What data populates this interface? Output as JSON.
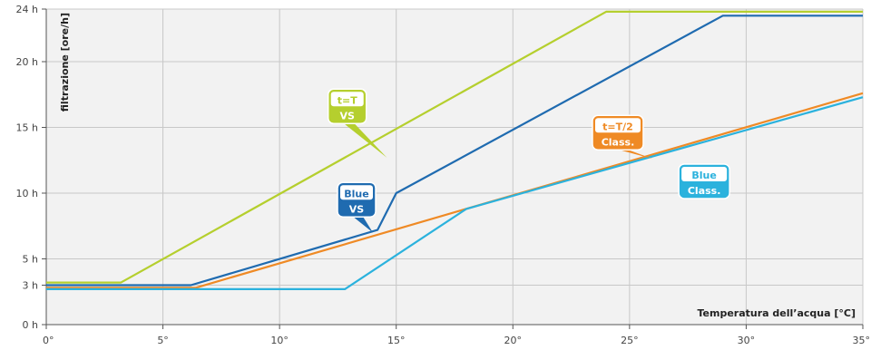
{
  "chart_data": {
    "type": "line",
    "title": "",
    "ylabel": "filtrazione [ore/h]",
    "xlabel": "Temperatura dell’acqua [°C]",
    "xlim": [
      0,
      35
    ],
    "ylim": [
      0,
      24
    ],
    "x_ticks": [
      0,
      5,
      10,
      15,
      20,
      25,
      30,
      35
    ],
    "x_tick_labels": [
      "0°",
      "5°",
      "10°",
      "15°",
      "20°",
      "25°",
      "30°",
      "35°"
    ],
    "y_ticks": [
      0,
      3,
      5,
      10,
      15,
      20,
      24
    ],
    "y_tick_labels": [
      "0 h",
      "3 h",
      "5 h",
      "10 h",
      "15 h",
      "20 h",
      "24 h"
    ],
    "grid": true,
    "series": [
      {
        "name": "t=T VS",
        "color": "#b5cf2e",
        "points": [
          [
            0,
            3.2
          ],
          [
            3.2,
            3.2
          ],
          [
            24,
            23.8
          ],
          [
            35,
            23.8
          ]
        ]
      },
      {
        "name": "Blue VS",
        "color": "#1f6bb0",
        "points": [
          [
            0,
            3.0
          ],
          [
            6.2,
            3.0
          ],
          [
            14.2,
            7.2
          ],
          [
            15,
            10.0
          ],
          [
            29,
            23.5
          ],
          [
            35,
            23.5
          ]
        ]
      },
      {
        "name": "t=T/2 Class.",
        "color": "#ef8a25",
        "points": [
          [
            0,
            2.8
          ],
          [
            6.4,
            2.8
          ],
          [
            35,
            17.6
          ]
        ]
      },
      {
        "name": "Blue Class.",
        "color": "#2bb2dd",
        "points": [
          [
            0,
            2.7
          ],
          [
            12.8,
            2.7
          ],
          [
            18,
            8.8
          ],
          [
            35,
            17.3
          ]
        ]
      }
    ],
    "annotations": [
      {
        "line1": "t=T",
        "line2": "VS",
        "color": "#b5cf2e",
        "at": [
          12.9,
          16.6
        ]
      },
      {
        "line1": "Blue",
        "line2": "VS",
        "color": "#1f6bb0",
        "at": [
          13.3,
          9.5
        ]
      },
      {
        "line1": "t=T/2",
        "line2": "Class.",
        "color": "#ef8a25",
        "at": [
          24.5,
          14.6
        ]
      },
      {
        "line1": "Blue",
        "line2": "Class.",
        "color": "#2bb2dd",
        "at": [
          28.2,
          10.9
        ]
      }
    ]
  }
}
